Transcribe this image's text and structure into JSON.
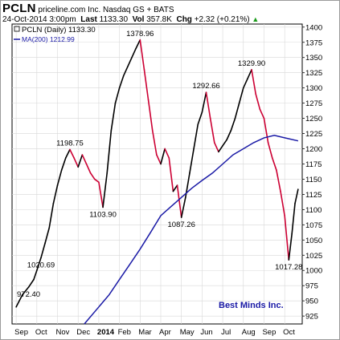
{
  "header": {
    "symbol": "PCLN",
    "company": "priceline.com Inc.",
    "exchange": "Nasdaq GS + BATS",
    "date": "24-Oct-2014 3:00pm",
    "last_label": "Last",
    "last_value": "1133.30",
    "vol_label": "Vol",
    "vol_value": "357.8K",
    "chg_label": "Chg",
    "chg_value": "+2.32 (+0.21%)",
    "chg_arrow": "▲"
  },
  "legend": {
    "price": "PCLN (Daily) 1133.30",
    "ma": "MA(200) 1212.99"
  },
  "watermark": "Best Minds Inc.",
  "colors": {
    "up": "#000000",
    "down": "#cc0033",
    "ma": "#1a1aa6",
    "watermark": "#1a1aa6",
    "grid": "#d8d8d8"
  },
  "chart_data": {
    "type": "line",
    "ylim": [
      912,
      1405
    ],
    "y_ticks": [
      "925",
      "950",
      "975",
      "1000",
      "1025",
      "1050",
      "1075",
      "1100",
      "1125",
      "1150",
      "1175",
      "1200",
      "1225",
      "1250",
      "1275",
      "1300",
      "1325",
      "1350",
      "1375",
      "1400"
    ],
    "x_ticks": [
      {
        "label": "Sep",
        "t": 0.0
      },
      {
        "label": "Oct",
        "t": 1.0
      },
      {
        "label": "Nov",
        "t": 2.0
      },
      {
        "label": "Dec",
        "t": 3.0
      },
      {
        "label": "2014",
        "t": 4.0,
        "bold": true
      },
      {
        "label": "Feb",
        "t": 5.0
      },
      {
        "label": "Mar",
        "t": 6.0
      },
      {
        "label": "Apr",
        "t": 7.0
      },
      {
        "label": "May",
        "t": 8.0
      },
      {
        "label": "Jun",
        "t": 9.0
      },
      {
        "label": "Jul",
        "t": 10.0
      },
      {
        "label": "Aug",
        "t": 11.0
      },
      {
        "label": "Sep",
        "t": 12.0
      },
      {
        "label": "Oct",
        "t": 13.0
      }
    ],
    "xlim": [
      -0.2,
      13.85
    ],
    "grid": true,
    "series": [
      {
        "name": "PCLN (Daily)",
        "points": [
          [
            0.0,
            940
          ],
          [
            0.3,
            960
          ],
          [
            0.6,
            972.4
          ],
          [
            0.85,
            985
          ],
          [
            1.0,
            1000
          ],
          [
            1.2,
            1020.69
          ],
          [
            1.4,
            1045
          ],
          [
            1.6,
            1070
          ],
          [
            1.8,
            1110
          ],
          [
            2.0,
            1140
          ],
          [
            2.2,
            1165
          ],
          [
            2.4,
            1185
          ],
          [
            2.6,
            1198.75
          ],
          [
            2.8,
            1185
          ],
          [
            3.0,
            1170
          ],
          [
            3.2,
            1190
          ],
          [
            3.4,
            1175
          ],
          [
            3.6,
            1160
          ],
          [
            3.8,
            1150
          ],
          [
            4.0,
            1145
          ],
          [
            4.2,
            1103.9
          ],
          [
            4.4,
            1160
          ],
          [
            4.6,
            1230
          ],
          [
            4.8,
            1275
          ],
          [
            5.0,
            1300
          ],
          [
            5.2,
            1320
          ],
          [
            5.4,
            1335
          ],
          [
            5.6,
            1350
          ],
          [
            5.8,
            1365
          ],
          [
            6.0,
            1378.96
          ],
          [
            6.2,
            1330
          ],
          [
            6.4,
            1280
          ],
          [
            6.6,
            1230
          ],
          [
            6.8,
            1190
          ],
          [
            7.0,
            1175
          ],
          [
            7.2,
            1200
          ],
          [
            7.4,
            1185
          ],
          [
            7.6,
            1130
          ],
          [
            7.8,
            1140
          ],
          [
            8.0,
            1087.26
          ],
          [
            8.2,
            1120
          ],
          [
            8.4,
            1160
          ],
          [
            8.6,
            1200
          ],
          [
            8.8,
            1240
          ],
          [
            9.0,
            1260
          ],
          [
            9.2,
            1292.66
          ],
          [
            9.4,
            1250
          ],
          [
            9.6,
            1210
          ],
          [
            9.8,
            1195
          ],
          [
            10.0,
            1205
          ],
          [
            10.2,
            1215
          ],
          [
            10.4,
            1230
          ],
          [
            10.6,
            1250
          ],
          [
            10.8,
            1275
          ],
          [
            11.0,
            1300
          ],
          [
            11.2,
            1315
          ],
          [
            11.4,
            1329.9
          ],
          [
            11.6,
            1290
          ],
          [
            11.8,
            1265
          ],
          [
            12.0,
            1250
          ],
          [
            12.2,
            1210
          ],
          [
            12.4,
            1185
          ],
          [
            12.6,
            1165
          ],
          [
            12.8,
            1130
          ],
          [
            13.0,
            1090
          ],
          [
            13.2,
            1017.28
          ],
          [
            13.35,
            1060
          ],
          [
            13.5,
            1110
          ],
          [
            13.65,
            1133.3
          ]
        ]
      },
      {
        "name": "MA(200)",
        "points": [
          [
            3.3,
            912
          ],
          [
            4.0,
            940
          ],
          [
            4.5,
            960
          ],
          [
            5.0,
            985
          ],
          [
            5.5,
            1010
          ],
          [
            6.0,
            1035
          ],
          [
            6.5,
            1062
          ],
          [
            7.0,
            1090
          ],
          [
            7.5,
            1105
          ],
          [
            8.0,
            1120
          ],
          [
            8.5,
            1135
          ],
          [
            9.0,
            1148
          ],
          [
            9.5,
            1160
          ],
          [
            10.0,
            1175
          ],
          [
            10.5,
            1190
          ],
          [
            11.0,
            1200
          ],
          [
            11.5,
            1210
          ],
          [
            12.0,
            1218
          ],
          [
            12.5,
            1222
          ],
          [
            13.0,
            1218
          ],
          [
            13.65,
            1213
          ]
        ]
      }
    ],
    "annotations": [
      {
        "text": "972.40",
        "t": 0.6,
        "y": 972.4,
        "pos": "below"
      },
      {
        "text": "1020.69",
        "t": 1.2,
        "y": 1020.69,
        "pos": "below"
      },
      {
        "text": "1198.75",
        "t": 2.6,
        "y": 1198.75,
        "pos": "above"
      },
      {
        "text": "1103.90",
        "t": 4.2,
        "y": 1103.9,
        "pos": "below"
      },
      {
        "text": "1378.96",
        "t": 6.0,
        "y": 1378.96,
        "pos": "above"
      },
      {
        "text": "1087.26",
        "t": 8.0,
        "y": 1087.26,
        "pos": "below"
      },
      {
        "text": "1292.66",
        "t": 9.2,
        "y": 1292.66,
        "pos": "above"
      },
      {
        "text": "1329.90",
        "t": 11.4,
        "y": 1329.9,
        "pos": "above"
      },
      {
        "text": "1017.28",
        "t": 13.2,
        "y": 1017.28,
        "pos": "below"
      }
    ]
  }
}
